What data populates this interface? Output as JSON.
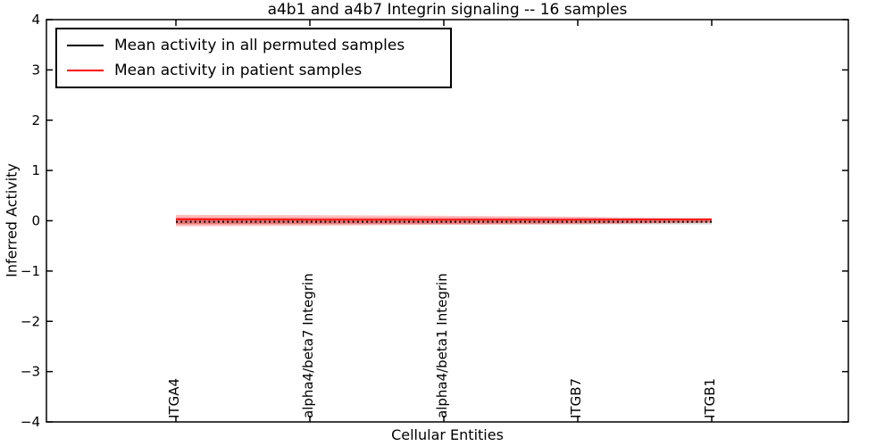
{
  "figure": {
    "background": "#ffffff",
    "frame_color": "#000000"
  },
  "chart_data": {
    "type": "line",
    "title": "a4b1 and a4b7 Integrin signaling -- 16 samples",
    "xlabel": "Cellular Entities",
    "ylabel": "Inferred Activity",
    "ylim": [
      -4,
      4
    ],
    "yticks": [
      -4,
      -3,
      -2,
      -1,
      0,
      1,
      2,
      3,
      4
    ],
    "grid": false,
    "legend_position": "upper left",
    "categories": [
      "ITGA4",
      "alpha4/beta7 Integrin",
      "alpha4/beta1 Integrin",
      "ITGB7",
      "ITGB1"
    ],
    "series": [
      {
        "name": "Mean activity in all permuted samples",
        "color": "#000000",
        "linestyle": "dotted",
        "values": [
          -0.02,
          -0.02,
          -0.02,
          -0.02,
          -0.02
        ],
        "bands": [
          {
            "upper": [
              0.05,
              0.05,
              0.05,
              0.05,
              0.05
            ],
            "lower": [
              -0.07,
              -0.07,
              -0.07,
              -0.07,
              -0.07
            ],
            "color": "#999999",
            "opacity": 0.4
          }
        ]
      },
      {
        "name": "Mean activity in patient samples",
        "color": "#ff0000",
        "linestyle": "solid",
        "values": [
          0.03,
          0.02,
          0.02,
          0.02,
          0.03
        ],
        "bands": [
          {
            "upper": [
              0.12,
              0.11,
              0.1,
              0.08,
              0.04
            ],
            "lower": [
              -0.11,
              -0.1,
              -0.08,
              -0.07,
              -0.04
            ],
            "color": "#ff0000",
            "opacity": 0.25
          },
          {
            "upper": [
              0.07,
              0.06,
              0.06,
              0.05,
              0.03
            ],
            "lower": [
              -0.07,
              -0.06,
              -0.06,
              -0.05,
              -0.03
            ],
            "color": "#ff0000",
            "opacity": 0.25
          }
        ]
      }
    ]
  }
}
